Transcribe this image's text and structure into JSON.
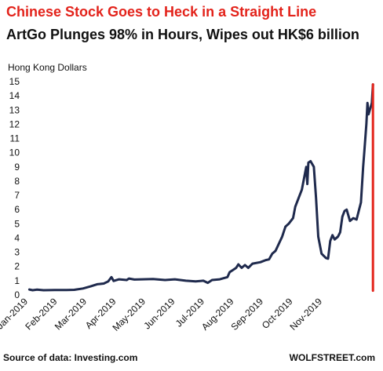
{
  "chart_data": {
    "type": "line",
    "title": "Chinese Stock Goes to Heck in a Straight Line",
    "subtitle": "ArtGo Plunges 98% in Hours, Wipes out HK$6 billion",
    "ylabel": "Hong Kong Dollars",
    "xlabel": "",
    "ylim": [
      0,
      15
    ],
    "yticks": [
      "0",
      "1",
      "2",
      "3",
      "4",
      "5",
      "6",
      "7",
      "8",
      "9",
      "10",
      "11",
      "12",
      "13",
      "14",
      "15"
    ],
    "xticks": [
      "Jan-2019",
      "Feb-2019",
      "Mar-2019",
      "Apr-2019",
      "May-2019",
      "Jun-2019",
      "Jul-2019",
      "Aug-2019",
      "Sep-2019",
      "Oct-2019",
      "Nov-2019"
    ],
    "grid": false,
    "series": [
      {
        "color": "#1f2a4d",
        "points": [
          [
            "2019-01-02",
            0.38
          ],
          [
            "2019-01-05",
            0.33
          ],
          [
            "2019-01-09",
            0.37
          ],
          [
            "2019-01-15",
            0.33
          ],
          [
            "2019-01-25",
            0.34
          ],
          [
            "2019-02-05",
            0.35
          ],
          [
            "2019-02-12",
            0.36
          ],
          [
            "2019-02-20",
            0.45
          ],
          [
            "2019-02-27",
            0.6
          ],
          [
            "2019-03-05",
            0.75
          ],
          [
            "2019-03-11",
            0.8
          ],
          [
            "2019-03-15",
            0.95
          ],
          [
            "2019-03-18",
            1.25
          ],
          [
            "2019-03-20",
            0.98
          ],
          [
            "2019-03-25",
            1.1
          ],
          [
            "2019-04-01",
            1.05
          ],
          [
            "2019-04-03",
            1.15
          ],
          [
            "2019-04-08",
            1.08
          ],
          [
            "2019-04-15",
            1.1
          ],
          [
            "2019-04-25",
            1.12
          ],
          [
            "2019-05-06",
            1.05
          ],
          [
            "2019-05-15",
            1.1
          ],
          [
            "2019-05-25",
            1.0
          ],
          [
            "2019-06-03",
            0.95
          ],
          [
            "2019-06-10",
            1.0
          ],
          [
            "2019-06-14",
            0.85
          ],
          [
            "2019-06-18",
            1.05
          ],
          [
            "2019-06-25",
            1.1
          ],
          [
            "2019-07-02",
            1.25
          ],
          [
            "2019-07-04",
            1.6
          ],
          [
            "2019-07-08",
            1.8
          ],
          [
            "2019-07-10",
            1.9
          ],
          [
            "2019-07-12",
            2.15
          ],
          [
            "2019-07-15",
            1.9
          ],
          [
            "2019-07-18",
            2.1
          ],
          [
            "2019-07-21",
            1.9
          ],
          [
            "2019-07-25",
            2.2
          ],
          [
            "2019-08-01",
            2.3
          ],
          [
            "2019-08-06",
            2.45
          ],
          [
            "2019-08-09",
            2.5
          ],
          [
            "2019-08-12",
            2.9
          ],
          [
            "2019-08-15",
            3.1
          ],
          [
            "2019-08-18",
            3.6
          ],
          [
            "2019-08-21",
            4.1
          ],
          [
            "2019-08-24",
            4.8
          ],
          [
            "2019-08-27",
            5.0
          ],
          [
            "2019-08-31",
            5.4
          ],
          [
            "2019-09-02",
            6.2
          ],
          [
            "2019-09-05",
            6.8
          ],
          [
            "2019-09-08",
            7.4
          ],
          [
            "2019-09-10",
            8.2
          ],
          [
            "2019-09-12",
            9.0
          ],
          [
            "2019-09-13",
            7.8
          ],
          [
            "2019-09-14",
            9.3
          ],
          [
            "2019-09-16",
            9.4
          ],
          [
            "2019-09-19",
            9.0
          ],
          [
            "2019-09-21",
            6.8
          ],
          [
            "2019-09-23",
            4.1
          ],
          [
            "2019-09-26",
            2.9
          ],
          [
            "2019-09-30",
            2.6
          ],
          [
            "2019-10-02",
            2.55
          ],
          [
            "2019-10-04",
            3.8
          ],
          [
            "2019-10-06",
            4.2
          ],
          [
            "2019-10-08",
            3.9
          ],
          [
            "2019-10-11",
            4.1
          ],
          [
            "2019-10-13",
            4.4
          ],
          [
            "2019-10-15",
            5.5
          ],
          [
            "2019-10-17",
            5.9
          ],
          [
            "2019-10-19",
            6.0
          ],
          [
            "2019-10-22",
            5.2
          ],
          [
            "2019-10-25",
            5.4
          ],
          [
            "2019-10-28",
            5.3
          ],
          [
            "2019-10-30",
            5.9
          ],
          [
            "2019-11-01",
            6.5
          ],
          [
            "2019-11-03",
            9.0
          ],
          [
            "2019-11-04",
            10.0
          ],
          [
            "2019-11-06",
            12.0
          ],
          [
            "2019-11-07",
            13.5
          ],
          [
            "2019-11-08",
            12.7
          ],
          [
            "2019-11-11",
            13.5
          ],
          [
            "2019-11-12",
            14.8
          ]
        ]
      },
      {
        "color": "#e3231b",
        "points": [
          [
            "2019-11-12",
            14.8
          ],
          [
            "2019-11-12",
            0.3
          ]
        ]
      }
    ]
  },
  "footer": {
    "source": "Source of data: Investing.com",
    "brand": "WOLFSTREET.com"
  }
}
